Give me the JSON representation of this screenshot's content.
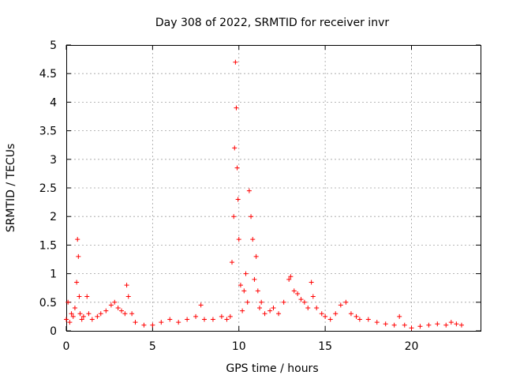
{
  "chart_data": {
    "type": "scatter",
    "title": "Day 308 of 2022, SRMTID for receiver invr",
    "xlabel": "GPS time / hours",
    "ylabel": "SRMTID / TECUs",
    "xlim": [
      0,
      24
    ],
    "ylim": [
      0,
      5
    ],
    "xticks": [
      0,
      5,
      10,
      15,
      20
    ],
    "xtick_labels": [
      "0",
      "5",
      "10",
      "15",
      "20"
    ],
    "yticks": [
      0,
      0.5,
      1,
      1.5,
      2,
      2.5,
      3,
      3.5,
      4,
      4.5,
      5
    ],
    "ytick_labels": [
      "0",
      "0.5",
      "1",
      "1.5",
      "2",
      "2.5",
      "3",
      "3.5",
      "4",
      "4.5",
      "5"
    ],
    "grid": true,
    "marker": "+",
    "series_color": "#ff0000",
    "series": [
      {
        "name": "SRMTID",
        "x": [
          0.0,
          0.1,
          0.2,
          0.3,
          0.4,
          0.5,
          0.6,
          0.65,
          0.7,
          0.75,
          0.8,
          0.9,
          1.0,
          1.2,
          1.3,
          1.5,
          1.8,
          2.0,
          2.3,
          2.6,
          2.8,
          3.0,
          3.2,
          3.4,
          3.5,
          3.6,
          3.8,
          4.0,
          4.5,
          5.0,
          5.5,
          6.0,
          6.5,
          7.0,
          7.5,
          7.8,
          8.0,
          8.5,
          9.0,
          9.3,
          9.5,
          9.6,
          9.7,
          9.75,
          9.8,
          9.85,
          9.9,
          9.95,
          10.0,
          10.1,
          10.2,
          10.3,
          10.4,
          10.5,
          10.6,
          10.7,
          10.8,
          10.9,
          11.0,
          11.1,
          11.2,
          11.3,
          11.5,
          11.8,
          12.0,
          12.3,
          12.6,
          12.9,
          13.0,
          13.2,
          13.4,
          13.6,
          13.8,
          14.0,
          14.2,
          14.3,
          14.5,
          14.8,
          15.0,
          15.3,
          15.6,
          15.9,
          16.2,
          16.5,
          16.8,
          17.0,
          17.5,
          18.0,
          18.5,
          19.0,
          19.3,
          19.6,
          20.0,
          20.5,
          21.0,
          21.5,
          22.0,
          22.3,
          22.6,
          22.9
        ],
        "y": [
          0.2,
          0.5,
          0.15,
          0.3,
          0.25,
          0.4,
          0.85,
          1.6,
          1.3,
          0.6,
          0.3,
          0.2,
          0.25,
          0.6,
          0.3,
          0.2,
          0.25,
          0.3,
          0.35,
          0.45,
          0.5,
          0.4,
          0.35,
          0.3,
          0.8,
          0.6,
          0.3,
          0.15,
          0.1,
          0.1,
          0.15,
          0.2,
          0.15,
          0.2,
          0.25,
          0.45,
          0.2,
          0.2,
          0.25,
          0.2,
          0.25,
          1.2,
          2.0,
          3.2,
          4.7,
          3.9,
          2.85,
          2.3,
          1.6,
          0.8,
          0.35,
          0.7,
          1.0,
          0.5,
          2.45,
          2.0,
          1.6,
          0.9,
          1.3,
          0.7,
          0.4,
          0.5,
          0.3,
          0.35,
          0.4,
          0.3,
          0.5,
          0.9,
          0.95,
          0.7,
          0.65,
          0.55,
          0.5,
          0.4,
          0.85,
          0.6,
          0.4,
          0.3,
          0.25,
          0.2,
          0.3,
          0.45,
          0.5,
          0.3,
          0.25,
          0.2,
          0.2,
          0.15,
          0.12,
          0.1,
          0.25,
          0.1,
          0.05,
          0.08,
          0.1,
          0.12,
          0.1,
          0.15,
          0.12,
          0.1
        ]
      }
    ]
  }
}
